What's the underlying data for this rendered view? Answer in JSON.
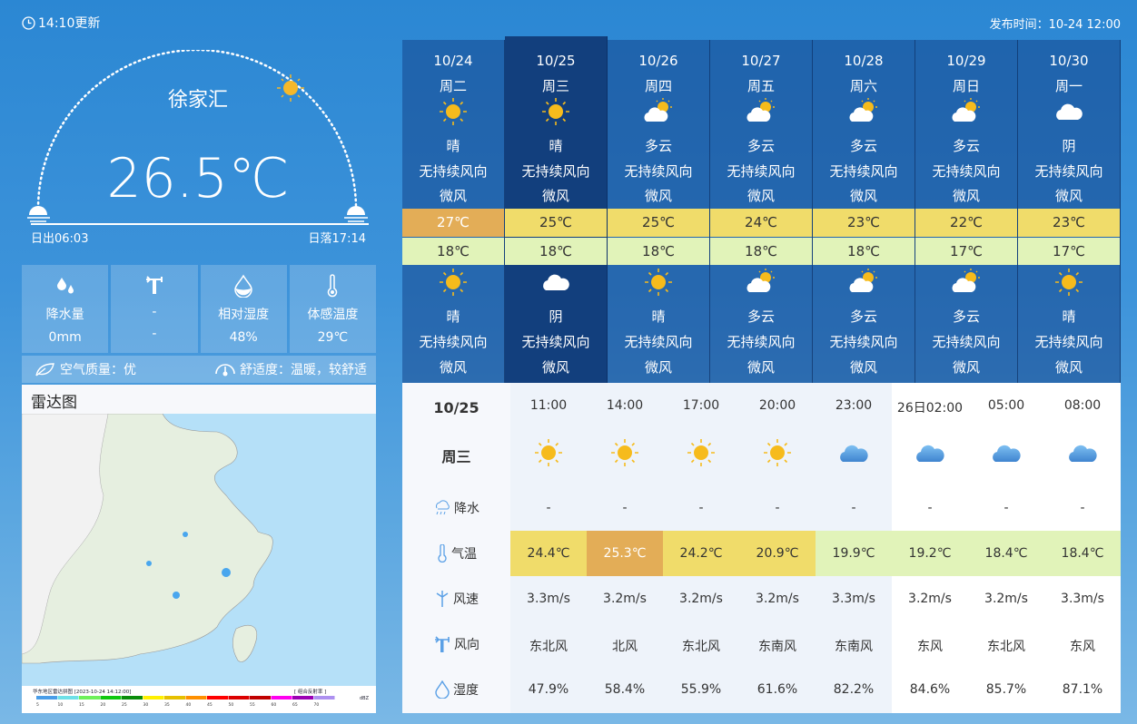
{
  "header": {
    "update": "14:10更新",
    "publish": "发布时间：10-24 12:00"
  },
  "current": {
    "city": "徐家汇",
    "temp": "26.5℃",
    "sunrise": "日出06:03",
    "sunset": "日落17:14"
  },
  "stats": [
    {
      "icon": "raindrops-icon",
      "label": "降水量",
      "value": "0mm"
    },
    {
      "icon": "wind-vane-icon",
      "label": "-",
      "value": "-"
    },
    {
      "icon": "humidity-drop-icon",
      "label": "相对湿度",
      "value": "48%"
    },
    {
      "icon": "thermometer-icon",
      "label": "体感温度",
      "value": "29℃"
    }
  ],
  "air": {
    "quality": "空气质量：优",
    "comfort": "舒适度：温暖，较舒适"
  },
  "radar": {
    "title": "雷达图",
    "map_caption": "华东地区雷达拼图 [2023-10-24 14:12:00]",
    "map_product": "[ 组合反射率 ]",
    "unit": "dBZ",
    "scale": [
      "5",
      "10",
      "15",
      "20",
      "25",
      "30",
      "35",
      "40",
      "45",
      "50",
      "55",
      "60",
      "65",
      "70"
    ],
    "scale_colors": [
      "#4a9de8",
      "#6ee0e8",
      "#6ef05a",
      "#10c810",
      "#0a8c0a",
      "#fff000",
      "#e6c000",
      "#ff9000",
      "#ff0000",
      "#dc0000",
      "#c00000",
      "#ff00f0",
      "#9c00b4",
      "#ad90f0"
    ]
  },
  "daily": [
    {
      "date": "10/24",
      "week": "周二",
      "day_icon": "sun",
      "day_text": "晴",
      "day_wind": "无持续风向",
      "day_force": "微风",
      "high": "27℃",
      "low": "18℃",
      "night_icon": "sun",
      "night_text": "晴",
      "night_wind": "无持续风向",
      "night_force": "微风",
      "high_color": "#e3ad57"
    },
    {
      "date": "10/25",
      "week": "周三",
      "day_icon": "sun",
      "day_text": "晴",
      "day_wind": "无持续风向",
      "day_force": "微风",
      "high": "25℃",
      "low": "18℃",
      "night_icon": "cloud",
      "night_text": "阴",
      "night_wind": "无持续风向",
      "night_force": "微风",
      "high_color": "#f0dc6a",
      "selected": true
    },
    {
      "date": "10/26",
      "week": "周四",
      "day_icon": "partly",
      "day_text": "多云",
      "day_wind": "无持续风向",
      "day_force": "微风",
      "high": "25℃",
      "low": "18℃",
      "night_icon": "sun",
      "night_text": "晴",
      "night_wind": "无持续风向",
      "night_force": "微风",
      "high_color": "#f0dc6a"
    },
    {
      "date": "10/27",
      "week": "周五",
      "day_icon": "partly",
      "day_text": "多云",
      "day_wind": "无持续风向",
      "day_force": "微风",
      "high": "24℃",
      "low": "18℃",
      "night_icon": "partly",
      "night_text": "多云",
      "night_wind": "无持续风向",
      "night_force": "微风",
      "high_color": "#f0dc6a"
    },
    {
      "date": "10/28",
      "week": "周六",
      "day_icon": "partly",
      "day_text": "多云",
      "day_wind": "无持续风向",
      "day_force": "微风",
      "high": "23℃",
      "low": "18℃",
      "night_icon": "partly",
      "night_text": "多云",
      "night_wind": "无持续风向",
      "night_force": "微风",
      "high_color": "#f0dc6a"
    },
    {
      "date": "10/29",
      "week": "周日",
      "day_icon": "partly",
      "day_text": "多云",
      "day_wind": "无持续风向",
      "day_force": "微风",
      "high": "22℃",
      "low": "17℃",
      "night_icon": "partly",
      "night_text": "多云",
      "night_wind": "无持续风向",
      "night_force": "微风",
      "high_color": "#f0dc6a"
    },
    {
      "date": "10/30",
      "week": "周一",
      "day_icon": "cloud",
      "day_text": "阴",
      "day_wind": "无持续风向",
      "day_force": "微风",
      "high": "23℃",
      "low": "17℃",
      "night_icon": "sun",
      "night_text": "晴",
      "night_wind": "无持续风向",
      "night_force": "微风",
      "high_color": "#f0dc6a"
    }
  ],
  "hourly": {
    "date": "10/25",
    "week": "周三",
    "labels": {
      "rain": "降水",
      "temp": "气温",
      "speed": "风速",
      "dir": "风向",
      "hum": "湿度"
    },
    "times": [
      "11:00",
      "14:00",
      "17:00",
      "20:00",
      "23:00",
      "26日02:00",
      "05:00",
      "08:00"
    ],
    "icons": [
      "sun",
      "sun",
      "sun",
      "sun",
      "cloud",
      "cloud",
      "cloud",
      "cloud"
    ],
    "rain": [
      "-",
      "-",
      "-",
      "-",
      "-",
      "-",
      "-",
      "-"
    ],
    "temp": [
      "24.4℃",
      "25.3℃",
      "24.2℃",
      "20.9℃",
      "19.9℃",
      "19.2℃",
      "18.4℃",
      "18.4℃"
    ],
    "temp_colors": [
      "#f0dc6a",
      "#e3ad57",
      "#f0dc6a",
      "#f0dc6a",
      "#e1f3b9",
      "#e1f3b9",
      "#e1f3b9",
      "#e1f3b9"
    ],
    "speed": [
      "3.3m/s",
      "3.2m/s",
      "3.2m/s",
      "3.2m/s",
      "3.3m/s",
      "3.2m/s",
      "3.2m/s",
      "3.3m/s"
    ],
    "dir": [
      "东北风",
      "北风",
      "东北风",
      "东南风",
      "东南风",
      "东风",
      "东北风",
      "东风"
    ],
    "hum": [
      "47.9%",
      "58.4%",
      "55.9%",
      "61.6%",
      "82.2%",
      "84.6%",
      "85.7%",
      "87.1%"
    ]
  }
}
